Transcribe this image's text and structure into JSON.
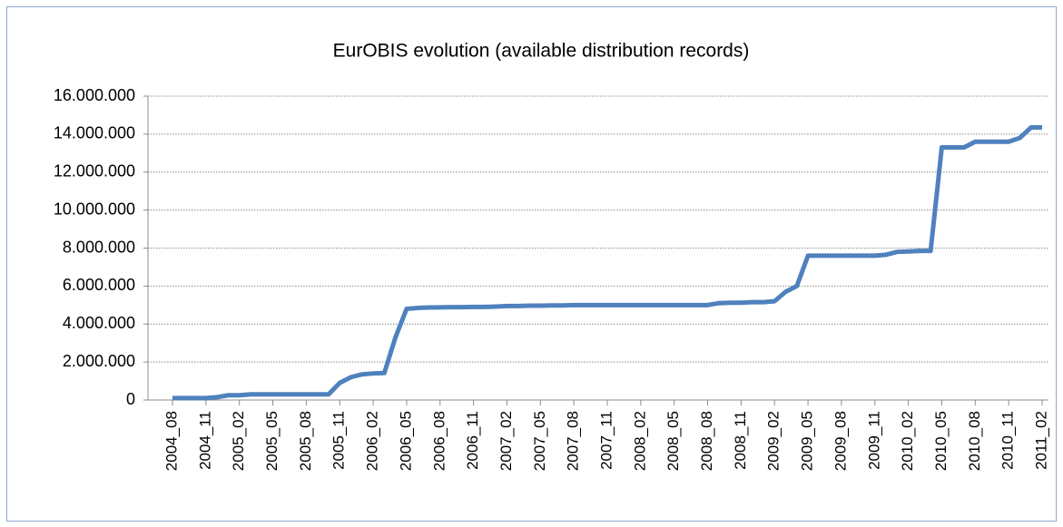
{
  "chart_data": {
    "type": "line",
    "title": "EurOBIS evolution (available distribution records)",
    "categories": [
      "2004_08",
      null,
      null,
      "2004_11",
      null,
      null,
      "2005_02",
      null,
      null,
      "2005_05",
      null,
      null,
      "2005_08",
      null,
      null,
      "2005_11",
      null,
      null,
      "2006_02",
      null,
      null,
      "2006_05",
      null,
      null,
      "2006_08",
      null,
      null,
      "2006_11",
      null,
      null,
      "2007_02",
      null,
      null,
      "2007_05",
      null,
      null,
      "2007_08",
      null,
      null,
      "2007_11",
      null,
      null,
      "2008_02",
      null,
      null,
      "2008_05",
      null,
      null,
      "2008_08",
      null,
      null,
      "2008_11",
      null,
      null,
      "2009_02",
      null,
      null,
      "2009_05",
      null,
      null,
      "2009_08",
      null,
      null,
      "2009_11",
      null,
      null,
      "2010_02",
      null,
      null,
      "2010_05",
      null,
      null,
      "2010_08",
      null,
      null,
      "2010_11",
      null,
      null,
      "2011_02"
    ],
    "series": [
      {
        "color": "#4f81bd",
        "values": [
          100000,
          100000,
          100000,
          100000,
          150000,
          250000,
          250000,
          300000,
          300000,
          300000,
          300000,
          300000,
          300000,
          300000,
          300000,
          900000,
          1200000,
          1350000,
          1400000,
          1420000,
          3300000,
          4800000,
          4850000,
          4870000,
          4880000,
          4890000,
          4890000,
          4900000,
          4900000,
          4920000,
          4950000,
          4950000,
          4970000,
          4970000,
          4980000,
          4980000,
          5000000,
          5000000,
          5000000,
          5000000,
          5000000,
          5000000,
          5000000,
          5000000,
          5000000,
          5000000,
          5000000,
          5000000,
          5000000,
          5100000,
          5120000,
          5120000,
          5150000,
          5150000,
          5200000,
          5700000,
          6000000,
          7600000,
          7600000,
          7600000,
          7600000,
          7600000,
          7600000,
          7600000,
          7650000,
          7800000,
          7820000,
          7850000,
          7850000,
          13300000,
          13300000,
          13300000,
          13600000,
          13600000,
          13600000,
          13600000,
          13800000,
          14350000,
          14350000
        ]
      }
    ],
    "ylim": [
      0,
      16000000
    ],
    "yticks": [
      0,
      {
        "value": 2000000,
        "label": "2.000.000"
      },
      {
        "value": 4000000,
        "label": "4.000.000"
      },
      {
        "value": 6000000,
        "label": "6.000.000"
      },
      {
        "value": 8000000,
        "label": "8.000.000"
      },
      {
        "value": 10000000,
        "label": "10.000.000"
      },
      {
        "value": 12000000,
        "label": "12.000.000"
      },
      {
        "value": 14000000,
        "label": "14.000.000"
      },
      {
        "value": 16000000,
        "label": "16.000.000"
      }
    ],
    "grid": true
  }
}
